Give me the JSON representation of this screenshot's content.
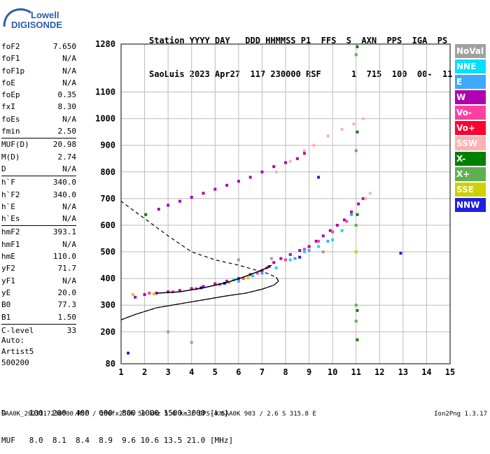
{
  "logo": {
    "line1": "Lowell",
    "line2": "DIGISONDE"
  },
  "header": {
    "line1": "Station YYYY DAY   DDD HHMMSS P1  FFS  S  AXN  PPS  IGA  PS",
    "line2": "SaoLuis 2023 Apr27  117 230000 RSF      1  715  100  00-  11"
  },
  "params": [
    {
      "name": "foF2",
      "value": "7.650"
    },
    {
      "name": "foF1",
      "value": "N/A"
    },
    {
      "name": "foF1p",
      "value": "N/A"
    },
    {
      "name": "foE",
      "value": "N/A"
    },
    {
      "name": "foEp",
      "value": "0.35"
    },
    {
      "name": "fxI",
      "value": "8.30"
    },
    {
      "name": "foEs",
      "value": "N/A"
    },
    {
      "name": "fmin",
      "value": "2.50"
    },
    {
      "name": "MUF(D)",
      "value": "20.98",
      "sep": true
    },
    {
      "name": "M(D)",
      "value": "2.74"
    },
    {
      "name": "D",
      "value": "N/A"
    },
    {
      "name": "h`F",
      "value": "340.0",
      "sep": true
    },
    {
      "name": "h`F2",
      "value": "340.0"
    },
    {
      "name": "h`E",
      "value": "N/A"
    },
    {
      "name": "h`Es",
      "value": "N/A"
    },
    {
      "name": "hmF2",
      "value": "393.1",
      "sep": true
    },
    {
      "name": "hmF1",
      "value": "N/A"
    },
    {
      "name": "hmE",
      "value": "110.0"
    },
    {
      "name": "yF2",
      "value": "71.7"
    },
    {
      "name": "yF1",
      "value": "N/A"
    },
    {
      "name": "yE",
      "value": "20.0"
    },
    {
      "name": "B0",
      "value": "77.3"
    },
    {
      "name": "B1",
      "value": "1.50"
    },
    {
      "name": "C-level",
      "value": "33",
      "sep": true
    }
  ],
  "auto": {
    "label": "Auto:",
    "system": "Artist5",
    "version": "500200"
  },
  "legend": [
    {
      "label": "NoVal",
      "color": "#a0a0a0"
    },
    {
      "label": "NNE",
      "color": "#00e0ff"
    },
    {
      "label": "E",
      "color": "#3fa8ff"
    },
    {
      "label": "W",
      "color": "#b000b0"
    },
    {
      "label": "Vo-",
      "color": "#ff40a0"
    },
    {
      "label": "Vo+",
      "color": "#ff0030"
    },
    {
      "label": "SSW",
      "color": "#ffb0b0"
    },
    {
      "label": "X-",
      "color": "#008000"
    },
    {
      "label": "X+",
      "color": "#60b050"
    },
    {
      "label": "SSE",
      "color": "#d0d000"
    },
    {
      "label": "NNW",
      "color": "#2020e0"
    }
  ],
  "dtable": {
    "row1": "D     100  200  400  600  800 1000 1500 3000 [km]",
    "row2": "MUF   8.0  8.1  8.4  8.9  9.6 10.6 13.5 21.0 [MHz]"
  },
  "footer": "SAA0K_2023117230000.RSF / 280fx256h 50 kHz 5.0 km / DPS-4 SAA0K 903 / 2.6 S 315.8 E",
  "version": "Ion2Png 1.3.17",
  "chart_data": {
    "type": "scatter",
    "xlim": [
      1,
      15
    ],
    "ylim": [
      80,
      1280
    ],
    "x_ticks": [
      1,
      2,
      3,
      4,
      5,
      6,
      7,
      8,
      9,
      10,
      11,
      12,
      13,
      14,
      15
    ],
    "y_ticks": [
      80,
      200,
      300,
      400,
      500,
      600,
      700,
      800,
      900,
      1000,
      1100,
      1280
    ],
    "grid": true,
    "series": [
      {
        "name": "W",
        "color": "#b000b0",
        "points": [
          [
            1.6,
            330
          ],
          [
            2.0,
            340
          ],
          [
            2.5,
            345
          ],
          [
            3.0,
            350
          ],
          [
            3.5,
            355
          ],
          [
            4.0,
            362
          ],
          [
            4.5,
            370
          ],
          [
            5.0,
            380
          ],
          [
            5.5,
            390
          ],
          [
            6.0,
            400
          ],
          [
            6.5,
            415
          ],
          [
            7.0,
            430
          ],
          [
            7.3,
            445
          ],
          [
            7.5,
            460
          ],
          [
            7.8,
            475
          ],
          [
            8.2,
            490
          ],
          [
            8.6,
            505
          ],
          [
            9.0,
            520
          ],
          [
            9.3,
            540
          ],
          [
            9.6,
            560
          ],
          [
            9.9,
            580
          ],
          [
            10.2,
            600
          ],
          [
            10.5,
            620
          ],
          [
            10.8,
            650
          ],
          [
            11.1,
            680
          ],
          [
            11.3,
            700
          ],
          [
            2.6,
            660
          ],
          [
            3.0,
            675
          ],
          [
            3.5,
            690
          ],
          [
            4.0,
            705
          ],
          [
            4.5,
            720
          ],
          [
            5.0,
            735
          ],
          [
            5.5,
            750
          ],
          [
            6.0,
            765
          ],
          [
            6.5,
            780
          ],
          [
            7.0,
            800
          ],
          [
            7.5,
            820
          ],
          [
            8.0,
            835
          ],
          [
            8.5,
            850
          ],
          [
            8.8,
            870
          ]
        ]
      },
      {
        "name": "Vo-",
        "color": "#ff40a0",
        "points": [
          [
            2.2,
            345
          ],
          [
            3.2,
            350
          ],
          [
            4.2,
            362
          ],
          [
            5.2,
            378
          ],
          [
            6.2,
            400
          ],
          [
            6.8,
            420
          ],
          [
            7.2,
            440
          ],
          [
            8.0,
            470
          ],
          [
            8.8,
            510
          ],
          [
            9.4,
            540
          ],
          [
            10.0,
            575
          ],
          [
            10.6,
            615
          ]
        ]
      },
      {
        "name": "NNE",
        "color": "#00e0ff",
        "points": [
          [
            5.8,
            395
          ],
          [
            6.6,
            410
          ],
          [
            7.6,
            440
          ],
          [
            8.2,
            470
          ],
          [
            8.8,
            500
          ],
          [
            9.4,
            520
          ],
          [
            10.0,
            545
          ],
          [
            10.4,
            580
          ]
        ]
      },
      {
        "name": "E",
        "color": "#3fa8ff",
        "points": [
          [
            6.0,
            390
          ],
          [
            7.0,
            420
          ],
          [
            8.4,
            475
          ],
          [
            9.0,
            505
          ],
          [
            9.8,
            540
          ],
          [
            10.8,
            640
          ]
        ]
      },
      {
        "name": "SSW",
        "color": "#ffb0b0",
        "points": [
          [
            7.6,
            800
          ],
          [
            8.2,
            840
          ],
          [
            8.8,
            880
          ],
          [
            9.2,
            900
          ],
          [
            9.8,
            935
          ],
          [
            10.4,
            960
          ],
          [
            10.9,
            980
          ],
          [
            11.3,
            1000
          ],
          [
            11.6,
            720
          ],
          [
            11.4,
            700
          ]
        ]
      },
      {
        "name": "X-",
        "color": "#008000",
        "points": [
          [
            11.05,
            1270
          ],
          [
            11.05,
            950
          ],
          [
            11.05,
            640
          ],
          [
            11.05,
            280
          ],
          [
            11.05,
            170
          ],
          [
            2.05,
            640
          ]
        ]
      },
      {
        "name": "X+",
        "color": "#60b050",
        "points": [
          [
            11.0,
            1240
          ],
          [
            11.0,
            880
          ],
          [
            11.0,
            600
          ],
          [
            11.0,
            300
          ],
          [
            11.0,
            240
          ]
        ]
      },
      {
        "name": "SSE",
        "color": "#d0d000",
        "points": [
          [
            1.5,
            340
          ],
          [
            2.4,
            342
          ],
          [
            5.6,
            385
          ],
          [
            6.4,
            402
          ],
          [
            11.0,
            500
          ]
        ]
      },
      {
        "name": "NNW",
        "color": "#2020e0",
        "points": [
          [
            4.4,
            365
          ],
          [
            5.4,
            382
          ],
          [
            8.6,
            480
          ],
          [
            9.4,
            780
          ],
          [
            12.9,
            495
          ],
          [
            1.3,
            120
          ]
        ]
      },
      {
        "name": "NoVal",
        "color": "#a0a0a0",
        "points": [
          [
            3.0,
            200
          ],
          [
            4.0,
            160
          ],
          [
            7.4,
            475
          ],
          [
            9.6,
            500
          ],
          [
            6.0,
            470
          ]
        ]
      }
    ],
    "profile_curve": [
      [
        1.0,
        245
      ],
      [
        1.6,
        265
      ],
      [
        2.5,
        290
      ],
      [
        3.5,
        305
      ],
      [
        4.5,
        320
      ],
      [
        5.5,
        335
      ],
      [
        6.3,
        345
      ],
      [
        7.0,
        360
      ],
      [
        7.5,
        375
      ],
      [
        7.7,
        390
      ],
      [
        7.6,
        405
      ],
      [
        7.2,
        420
      ],
      [
        6.6,
        435
      ],
      [
        6.0,
        450
      ],
      [
        5.0,
        470
      ],
      [
        4.0,
        500
      ],
      [
        3.0,
        560
      ],
      [
        2.0,
        625
      ],
      [
        1.0,
        690
      ]
    ],
    "trace_curve": [
      [
        2.5,
        345
      ],
      [
        3.5,
        350
      ],
      [
        4.5,
        365
      ],
      [
        5.5,
        385
      ],
      [
        6.2,
        405
      ],
      [
        6.8,
        425
      ],
      [
        7.2,
        440
      ],
      [
        7.4,
        450
      ]
    ]
  }
}
